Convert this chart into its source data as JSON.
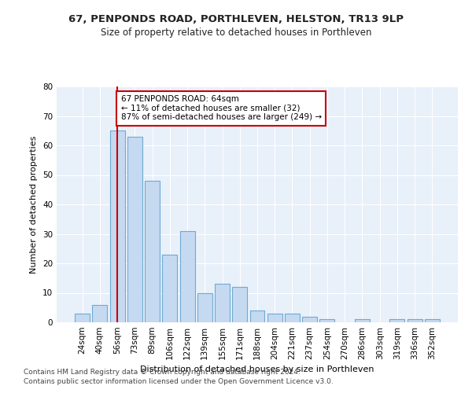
{
  "title1": "67, PENPONDS ROAD, PORTHLEVEN, HELSTON, TR13 9LP",
  "title2": "Size of property relative to detached houses in Porthleven",
  "xlabel": "Distribution of detached houses by size in Porthleven",
  "ylabel": "Number of detached properties",
  "categories": [
    "24sqm",
    "40sqm",
    "56sqm",
    "73sqm",
    "89sqm",
    "106sqm",
    "122sqm",
    "139sqm",
    "155sqm",
    "171sqm",
    "188sqm",
    "204sqm",
    "221sqm",
    "237sqm",
    "254sqm",
    "270sqm",
    "286sqm",
    "303sqm",
    "319sqm",
    "336sqm",
    "352sqm"
  ],
  "values": [
    3,
    6,
    65,
    63,
    48,
    23,
    31,
    10,
    13,
    12,
    4,
    3,
    3,
    2,
    1,
    0,
    1,
    0,
    1,
    1,
    1
  ],
  "bar_color": "#c5d9f0",
  "bar_edge_color": "#6eaad4",
  "vline_x_idx": 2,
  "vline_color": "#cc0000",
  "annotation_line1": "67 PENPONDS ROAD: 64sqm",
  "annotation_line2": "← 11% of detached houses are smaller (32)",
  "annotation_line3": "87% of semi-detached houses are larger (249) →",
  "annotation_box_color": "#ffffff",
  "annotation_box_edge_color": "#cc0000",
  "ylim": [
    0,
    80
  ],
  "yticks": [
    0,
    10,
    20,
    30,
    40,
    50,
    60,
    70,
    80
  ],
  "background_color": "#e8f0fa",
  "grid_color": "#ffffff",
  "footer1": "Contains HM Land Registry data © Crown copyright and database right 2024.",
  "footer2": "Contains public sector information licensed under the Open Government Licence v3.0."
}
